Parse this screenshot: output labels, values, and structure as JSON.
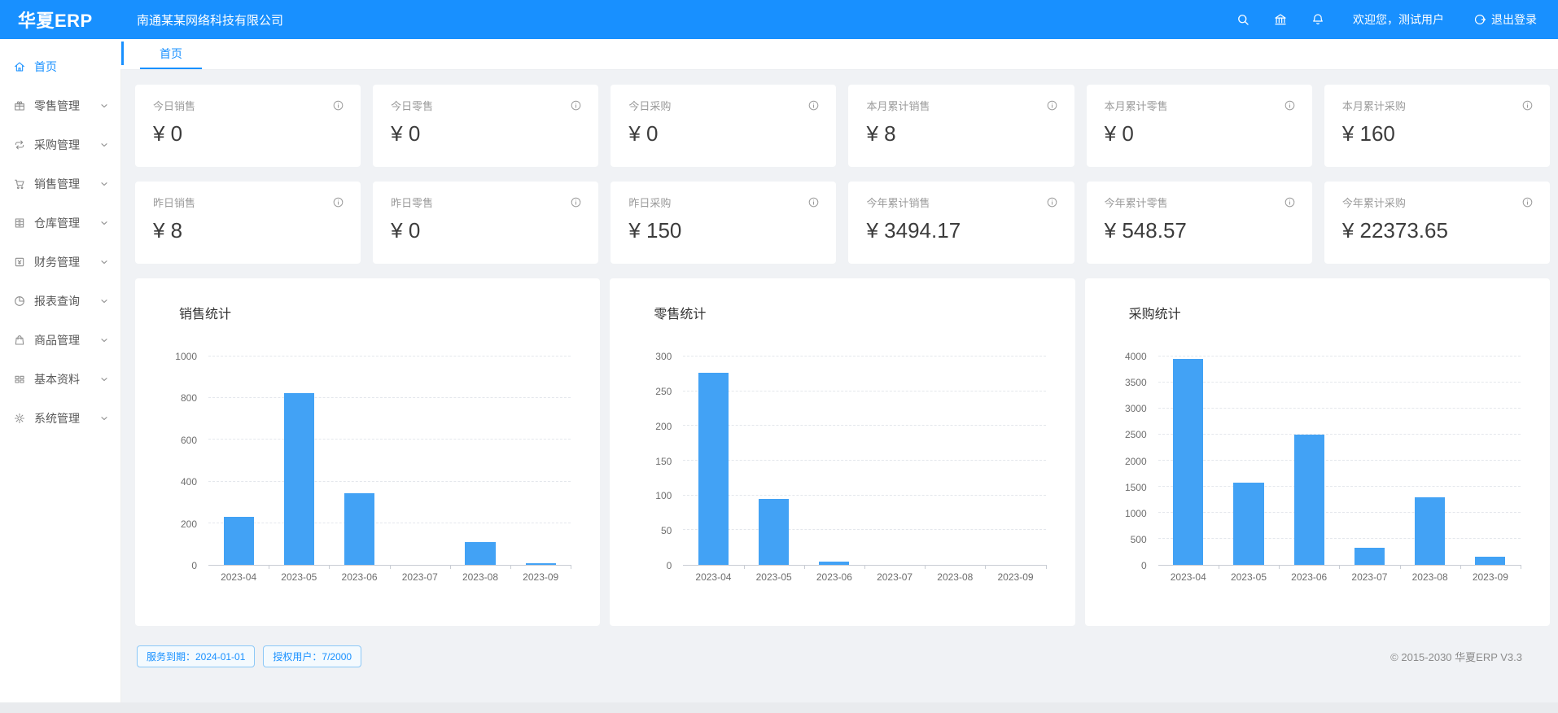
{
  "header": {
    "logo": "华夏ERP",
    "company": "南通某某网络科技有限公司",
    "welcome": "欢迎您，测试用户",
    "logout_label": "退出登录",
    "icons": [
      "search-icon",
      "bank-icon",
      "bell-icon",
      "logout-icon"
    ]
  },
  "sidebar": {
    "items": [
      {
        "label": "首页",
        "icon": "home-icon",
        "active": true,
        "chevron": false
      },
      {
        "label": "零售管理",
        "icon": "gift-icon",
        "active": false,
        "chevron": true
      },
      {
        "label": "采购管理",
        "icon": "swap-icon",
        "active": false,
        "chevron": true
      },
      {
        "label": "销售管理",
        "icon": "cart-icon",
        "active": false,
        "chevron": true
      },
      {
        "label": "仓库管理",
        "icon": "archive-icon",
        "active": false,
        "chevron": true
      },
      {
        "label": "财务管理",
        "icon": "finance-icon",
        "active": false,
        "chevron": true
      },
      {
        "label": "报表查询",
        "icon": "pie-icon",
        "active": false,
        "chevron": true
      },
      {
        "label": "商品管理",
        "icon": "bag-icon",
        "active": false,
        "chevron": true
      },
      {
        "label": "基本资料",
        "icon": "grid-icon",
        "active": false,
        "chevron": true
      },
      {
        "label": "系统管理",
        "icon": "gear-icon",
        "active": false,
        "chevron": true
      }
    ]
  },
  "tabs": [
    {
      "label": "首页",
      "active": true
    }
  ],
  "stats": {
    "row1": [
      {
        "title": "今日销售",
        "value": "¥ 0"
      },
      {
        "title": "今日零售",
        "value": "¥ 0"
      },
      {
        "title": "今日采购",
        "value": "¥ 0"
      },
      {
        "title": "本月累计销售",
        "value": "¥ 8"
      },
      {
        "title": "本月累计零售",
        "value": "¥ 0"
      },
      {
        "title": "本月累计采购",
        "value": "¥ 160"
      }
    ],
    "row2": [
      {
        "title": "昨日销售",
        "value": "¥ 8"
      },
      {
        "title": "昨日零售",
        "value": "¥ 0"
      },
      {
        "title": "昨日采购",
        "value": "¥ 150"
      },
      {
        "title": "今年累计销售",
        "value": "¥ 3494.17"
      },
      {
        "title": "今年累计零售",
        "value": "¥ 548.57"
      },
      {
        "title": "今年累计采购",
        "value": "¥ 22373.65"
      }
    ]
  },
  "chart_data": [
    {
      "type": "bar",
      "title": "销售统计",
      "categories": [
        "2023-04",
        "2023-05",
        "2023-06",
        "2023-07",
        "2023-08",
        "2023-09"
      ],
      "values": [
        230,
        825,
        345,
        0,
        110,
        8
      ],
      "ticks": [
        0,
        200,
        400,
        600,
        800,
        1000
      ],
      "ylim": [
        0,
        1000
      ],
      "xlabel": "",
      "ylabel": "",
      "grid": true,
      "legend_position": "none",
      "bar_color": "#42a2f5"
    },
    {
      "type": "bar",
      "title": "零售统计",
      "categories": [
        "2023-04",
        "2023-05",
        "2023-06",
        "2023-07",
        "2023-08",
        "2023-09"
      ],
      "values": [
        277,
        95,
        5,
        0,
        0,
        0
      ],
      "ticks": [
        0,
        50,
        100,
        150,
        200,
        250,
        300
      ],
      "ylim": [
        0,
        300
      ],
      "xlabel": "",
      "ylabel": "",
      "grid": true,
      "legend_position": "none",
      "bar_color": "#42a2f5"
    },
    {
      "type": "bar",
      "title": "采购统计",
      "categories": [
        "2023-04",
        "2023-05",
        "2023-06",
        "2023-07",
        "2023-08",
        "2023-09"
      ],
      "values": [
        3950,
        1580,
        2500,
        330,
        1300,
        160
      ],
      "ticks": [
        0,
        500,
        1000,
        1500,
        2000,
        2500,
        3000,
        3500,
        4000
      ],
      "ylim": [
        0,
        4000
      ],
      "xlabel": "",
      "ylabel": "",
      "grid": true,
      "legend_position": "none",
      "bar_color": "#42a2f5"
    }
  ],
  "footer": {
    "badges": [
      "服务到期：2024-01-01",
      "授权用户：7/2000"
    ],
    "copyright": "© 2015-2030 华夏ERP V3.3"
  },
  "colors": {
    "primary": "#1890ff",
    "bar": "#42a2f5",
    "background": "#f0f2f5"
  }
}
